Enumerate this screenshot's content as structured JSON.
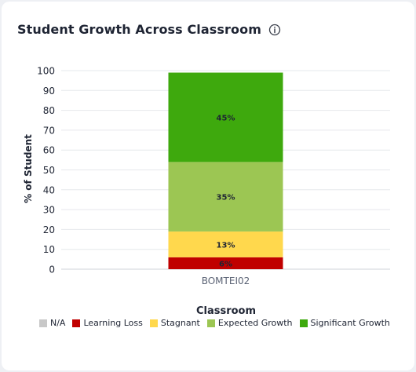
{
  "header": {
    "title": "Student Growth Across Classroom",
    "info_icon": "info-circle-icon"
  },
  "chart_data": {
    "type": "bar",
    "stacked": true,
    "categories": [
      "BOMTEI02"
    ],
    "xlabel": "Classroom",
    "ylabel": "% of Student",
    "ylim": [
      0,
      100
    ],
    "yticks": [
      0,
      10,
      20,
      30,
      40,
      50,
      60,
      70,
      80,
      90,
      100
    ],
    "grid": true,
    "legend_position": "bottom",
    "series": [
      {
        "name": "N/A",
        "color": "#c8c8c8",
        "values": [
          0
        ],
        "label": ""
      },
      {
        "name": "Learning Loss",
        "color": "#c00000",
        "values": [
          6
        ],
        "label": "6%"
      },
      {
        "name": "Stagnant",
        "color": "#ffd84d",
        "values": [
          13
        ],
        "label": "13%"
      },
      {
        "name": "Expected Growth",
        "color": "#9cc653",
        "values": [
          35
        ],
        "label": "35%"
      },
      {
        "name": "Significant Growth",
        "color": "#3ea90d",
        "values": [
          45
        ],
        "label": "45%"
      }
    ]
  }
}
